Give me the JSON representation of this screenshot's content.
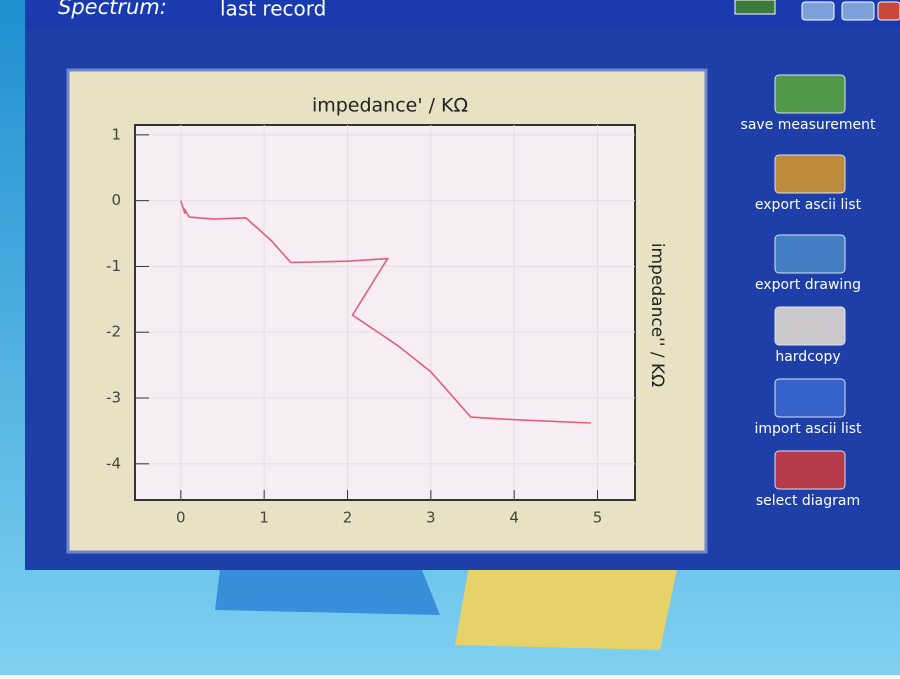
{
  "header": {
    "title": "Spectrum:",
    "subtitle": "last record"
  },
  "chart_data": {
    "type": "line",
    "title": "impedance' / KΩ",
    "y_label": "impedance'' / KΩ",
    "x": [
      0.0,
      0.05,
      0.04,
      0.1,
      0.4,
      0.78,
      1.08,
      1.32,
      2.0,
      2.48,
      2.06,
      2.6,
      3.0,
      3.48,
      4.0,
      4.92
    ],
    "values": [
      0.0,
      -0.2,
      -0.12,
      -0.25,
      -0.28,
      -0.26,
      -0.6,
      -0.94,
      -0.92,
      -0.88,
      -1.74,
      -2.2,
      -2.6,
      -3.29,
      -3.33,
      -3.38
    ],
    "color": "#e0607a",
    "xlim": [
      -0.55,
      5.45
    ],
    "xticks": [
      0,
      1,
      2,
      3,
      4,
      5
    ],
    "ylim": [
      -4.55,
      1.15
    ],
    "yticks": [
      -4,
      -3,
      -2,
      -1,
      0,
      1
    ],
    "grid": true
  },
  "buttons": [
    {
      "label": "save measurement"
    },
    {
      "label": "export ascii list"
    },
    {
      "label": "export drawing"
    },
    {
      "label": "hardcopy"
    },
    {
      "label": "import ascii list"
    },
    {
      "label": "select diagram"
    }
  ]
}
